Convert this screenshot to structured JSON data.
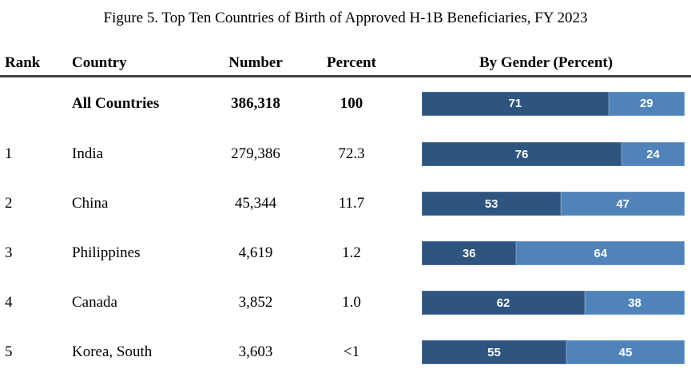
{
  "title": "Figure 5. Top Ten Countries of Birth of Approved H-1B Beneficiaries, FY 2023",
  "columns": {
    "rank": "Rank",
    "country": "Country",
    "number": "Number",
    "percent": "Percent",
    "gender": "By Gender (Percent)"
  },
  "colors": {
    "male_segment": "#2e5480",
    "female_segment": "#5083ba",
    "header_rule": "#3f3f3f"
  },
  "rows": [
    {
      "rank": "",
      "country": "All Countries",
      "number": "386,318",
      "percent": "100",
      "male": 71,
      "female": 29
    },
    {
      "rank": "1",
      "country": "India",
      "number": "279,386",
      "percent": "72.3",
      "male": 76,
      "female": 24
    },
    {
      "rank": "2",
      "country": "China",
      "number": "45,344",
      "percent": "11.7",
      "male": 53,
      "female": 47
    },
    {
      "rank": "3",
      "country": "Philippines",
      "number": "4,619",
      "percent": "1.2",
      "male": 36,
      "female": 64
    },
    {
      "rank": "4",
      "country": "Canada",
      "number": "3,852",
      "percent": "1.0",
      "male": 62,
      "female": 38
    },
    {
      "rank": "5",
      "country": "Korea, South",
      "number": "3,603",
      "percent": "<1",
      "male": 55,
      "female": 45
    }
  ],
  "chart_data": {
    "type": "bar",
    "subtype": "stacked-horizontal",
    "title": "Figure 5. Top Ten Countries of Birth of Approved H-1B Beneficiaries, FY 2023",
    "categories": [
      "All Countries",
      "India",
      "China",
      "Philippines",
      "Canada",
      "Korea, South"
    ],
    "series": [
      {
        "name": "Male (dark blue)",
        "values": [
          71,
          76,
          53,
          36,
          62,
          55
        ]
      },
      {
        "name": "Female (light blue)",
        "values": [
          29,
          24,
          47,
          64,
          38,
          45
        ]
      }
    ],
    "table_columns": [
      "Rank",
      "Country",
      "Number",
      "Percent",
      "By Gender (Percent)"
    ],
    "number_values": [
      386318,
      279386,
      45344,
      4619,
      3852,
      3603
    ],
    "percent_values": [
      "100",
      "72.3",
      "11.7",
      "1.2",
      "1.0",
      "<1"
    ],
    "rank_values": [
      "",
      "1",
      "2",
      "3",
      "4",
      "5"
    ],
    "xlim": [
      0,
      100
    ],
    "grid": false,
    "legend": false,
    "data_labels": "inside-center-white"
  }
}
